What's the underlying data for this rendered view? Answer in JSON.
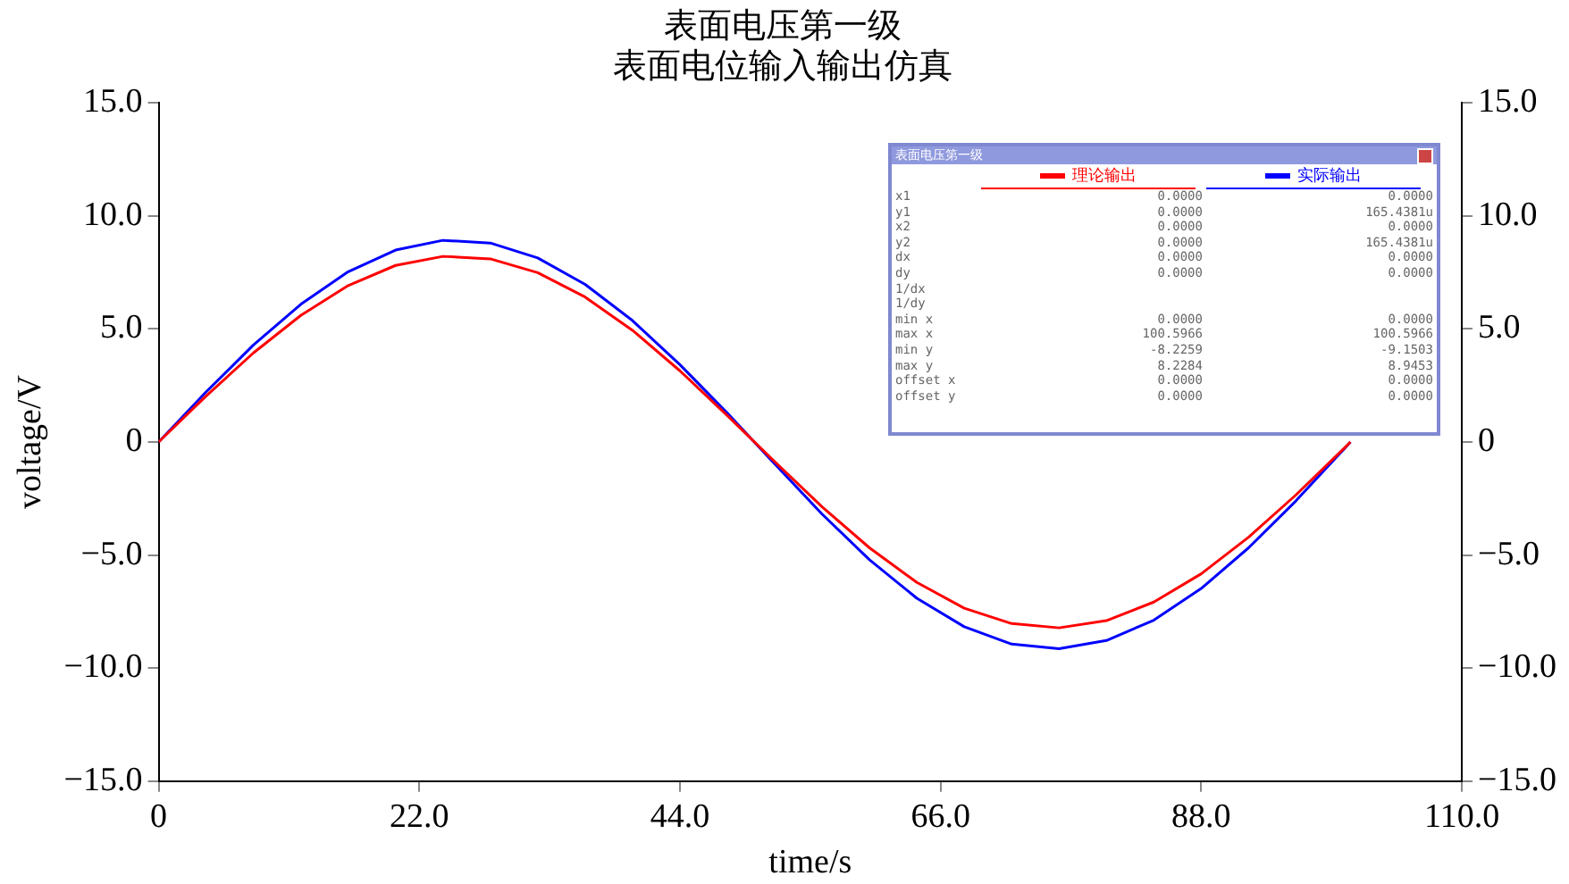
{
  "chart_data": {
    "type": "line",
    "title": "表面电压第一级",
    "subtitle": "表面电位输入输出仿真",
    "xlabel": "time/s",
    "ylabel": "voltage/V",
    "x": [
      0,
      4,
      8,
      12,
      16,
      20,
      24,
      28,
      32,
      36,
      40,
      44,
      48,
      52,
      56,
      60,
      64,
      68,
      72,
      76,
      80,
      84,
      88,
      92,
      96,
      100,
      100.6
    ],
    "series": [
      {
        "name": "理论输出",
        "color": "#ff0000",
        "values": [
          0,
          2.03,
          3.94,
          5.6,
          6.92,
          7.81,
          8.21,
          8.1,
          7.49,
          6.41,
          4.94,
          3.15,
          1.17,
          -0.87,
          -2.87,
          -4.68,
          -6.21,
          -7.35,
          -8.03,
          -8.22,
          -7.9,
          -7.08,
          -5.83,
          -4.21,
          -2.34,
          -0.31,
          0
        ]
      },
      {
        "name": "实际输出",
        "color": "#0000ff",
        "values": [
          0,
          2.21,
          4.29,
          6.09,
          7.53,
          8.49,
          8.92,
          8.8,
          8.14,
          6.97,
          5.37,
          3.42,
          1.28,
          -0.97,
          -3.19,
          -5.21,
          -6.91,
          -8.17,
          -8.94,
          -9.14,
          -8.78,
          -7.88,
          -6.48,
          -4.68,
          -2.6,
          -0.34,
          0
        ]
      }
    ],
    "xlim": [
      0,
      110
    ],
    "xticks": [
      0,
      {
        "value": 22,
        "label": "22.0"
      },
      {
        "value": 44,
        "label": "44.0"
      },
      {
        "value": 66,
        "label": "66.0"
      },
      {
        "value": 88,
        "label": "88.0"
      },
      {
        "value": 110,
        "label": "110.0"
      }
    ],
    "ylim": [
      -15,
      15
    ],
    "yticks": [
      {
        "value": -15,
        "label": "−15.0"
      },
      {
        "value": -10,
        "label": "−10.0"
      },
      {
        "value": -5,
        "label": "−5.0"
      },
      0,
      {
        "value": 5,
        "label": "5.0"
      },
      {
        "value": 10,
        "label": "10.0"
      },
      {
        "value": 15,
        "label": "15.0"
      }
    ],
    "y2lim": [
      -15,
      15
    ],
    "y2ticks": [
      {
        "value": -15,
        "label": "−15.0"
      },
      {
        "value": -10,
        "label": "−10.0"
      },
      {
        "value": -5,
        "label": "−5.0"
      },
      0,
      {
        "value": 5,
        "label": "5.0"
      },
      {
        "value": 10,
        "label": "10.0"
      },
      {
        "value": 15,
        "label": "15.0"
      }
    ],
    "grid": false,
    "legend": "top right",
    "marker": "none",
    "line_style": "solid",
    "annotations": [
      "表面电压第一级",
      "x1\t0.0000\t0.0000",
      "y1\t0.0000\t165.4381u",
      "x2\t0.0000\t0.0000",
      "y2\t0.0000\t165.4381u",
      "dx\t0.0000\t0.0000",
      "dy\t0.0000\t0.0000",
      "1/dx",
      "1/dy",
      "min x\t0.0000\t0.0000",
      "max x\t100.5966\t100.5966",
      "min y\t-8.2259\t-9.1503",
      "max y\t8.2284\t8.9453",
      "offset x\t0.0000\t0.0000",
      "offset y\t0.0000\t0.0000"
    ]
  }
}
